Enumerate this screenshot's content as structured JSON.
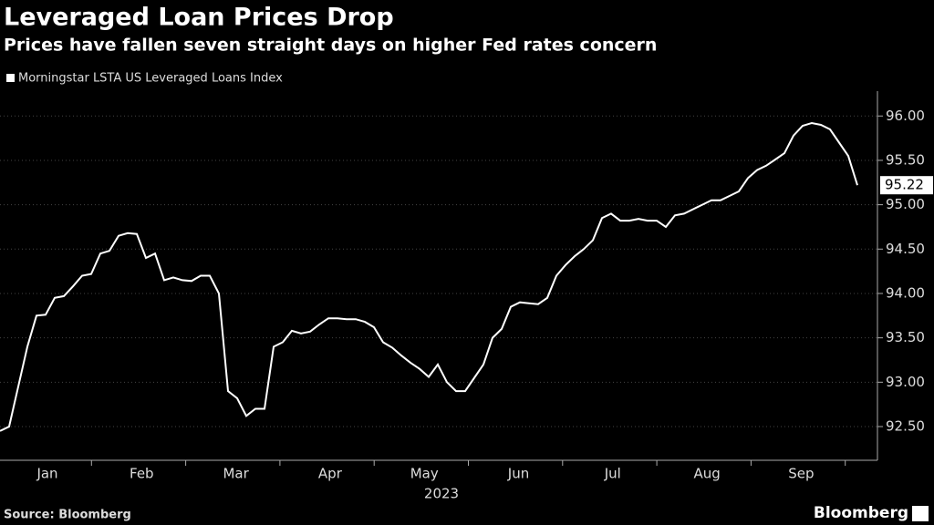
{
  "chart_data": {
    "type": "line",
    "title": "Leveraged Loan Prices Drop",
    "subtitle": "Prices have fallen seven straight days on higher Fed rates concern",
    "source": "Source: Bloomberg",
    "brand": "Bloomberg",
    "x_labels": [
      "Jan",
      "Feb",
      "Mar",
      "Apr",
      "May",
      "Jun",
      "Jul",
      "Aug",
      "Sep"
    ],
    "x_year": "2023",
    "last_value_label": "95.22",
    "ylim": [
      92.12,
      96.28
    ],
    "yticks": [
      {
        "value": 92.5,
        "label": "92.50"
      },
      {
        "value": 93,
        "label": "93.00"
      },
      {
        "value": 93.5,
        "label": "93.50"
      },
      {
        "value": 94,
        "label": "94.00"
      },
      {
        "value": 94.5,
        "label": "94.50"
      },
      {
        "value": 95,
        "label": "95.00"
      },
      {
        "value": 95.5,
        "label": "95.50"
      },
      {
        "value": 96,
        "label": "96.00"
      }
    ],
    "grid": true,
    "series": [
      {
        "name": "Morningstar LSTA US Leveraged Loans Index",
        "color": "#ffffff",
        "values": [
          92.45,
          92.5,
          92.95,
          93.4,
          93.75,
          93.76,
          93.95,
          93.97,
          94.08,
          94.2,
          94.22,
          94.45,
          94.48,
          94.65,
          94.68,
          94.67,
          94.4,
          94.45,
          94.15,
          94.18,
          94.15,
          94.14,
          94.2,
          94.2,
          94.0,
          92.9,
          92.82,
          92.62,
          92.7,
          92.7,
          93.4,
          93.45,
          93.58,
          93.55,
          93.57,
          93.65,
          93.72,
          93.72,
          93.71,
          93.71,
          93.68,
          93.62,
          93.45,
          93.39,
          93.3,
          93.22,
          93.15,
          93.06,
          93.2,
          93.0,
          92.9,
          92.9,
          93.05,
          93.2,
          93.5,
          93.6,
          93.85,
          93.9,
          93.89,
          93.88,
          93.95,
          94.2,
          94.32,
          94.42,
          94.5,
          94.6,
          94.85,
          94.9,
          94.82,
          94.82,
          94.84,
          94.82,
          94.82,
          94.75,
          94.88,
          94.9,
          94.95,
          95.0,
          95.05,
          95.05,
          95.1,
          95.15,
          95.3,
          95.39,
          95.44,
          95.51,
          95.58,
          95.78,
          95.89,
          95.92,
          95.9,
          95.85,
          95.7,
          95.55,
          95.22
        ]
      }
    ]
  }
}
